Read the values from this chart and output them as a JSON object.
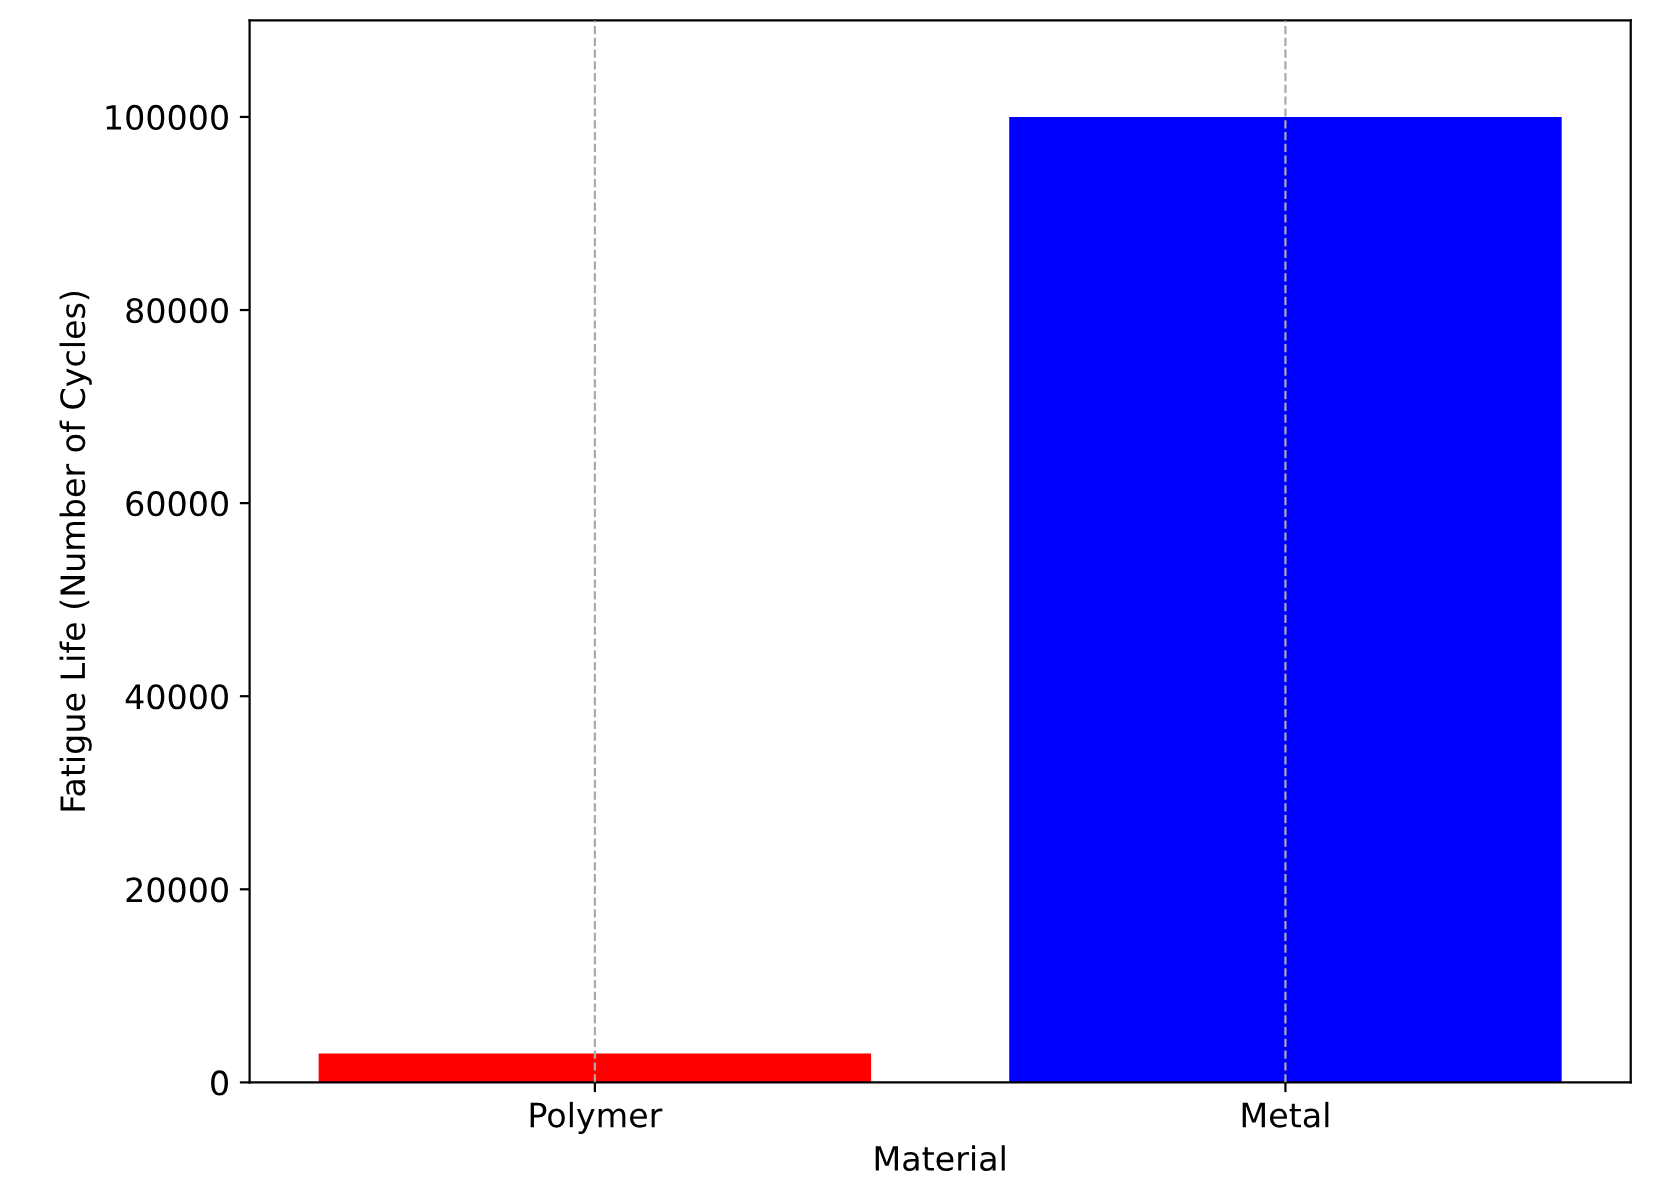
{
  "chart_data": {
    "type": "bar",
    "xlabel": "Material",
    "ylabel": "Fatigue Life (Number of Cycles)",
    "categories": [
      "Polymer",
      "Metal"
    ],
    "values": [
      3000,
      100000
    ],
    "colors": [
      "#ff0000",
      "#0000ff"
    ],
    "ylim": [
      0,
      110000
    ],
    "yticks": [
      0,
      20000,
      40000,
      60000,
      80000,
      100000
    ],
    "grid": "x"
  }
}
